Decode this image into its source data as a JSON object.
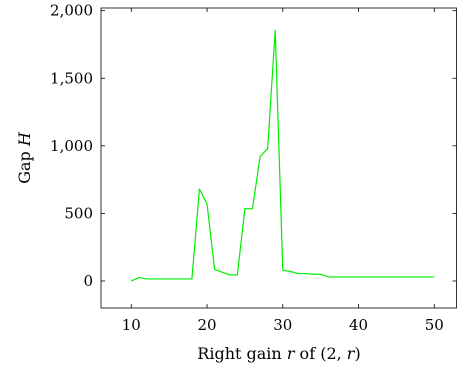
{
  "chart_data": {
    "type": "line",
    "xlabel_parts": [
      "Right gain ",
      "r",
      " of ",
      "(2, ",
      "r",
      ")"
    ],
    "ylabel_parts": [
      "Gap ",
      "H"
    ],
    "xlim": [
      6,
      53
    ],
    "ylim": [
      -200,
      2020
    ],
    "x_ticks": [
      10,
      20,
      30,
      40,
      50
    ],
    "x_tick_labels": [
      "10",
      "20",
      "30",
      "40",
      "50"
    ],
    "y_ticks": [
      0,
      500,
      1000,
      1500,
      2000
    ],
    "y_tick_labels": [
      "0",
      "500",
      "1,000",
      "1,500",
      "2,000"
    ],
    "grid": false,
    "series": [
      {
        "color": "#00ee00",
        "x": [
          10,
          11,
          12,
          13,
          14,
          15,
          16,
          17,
          18,
          19,
          20,
          21,
          22,
          23,
          24,
          25,
          26,
          27,
          28,
          29,
          30,
          31,
          32,
          33,
          34,
          35,
          36,
          37,
          38,
          39,
          40,
          41,
          42,
          43,
          44,
          45,
          46,
          47,
          48,
          49,
          50
        ],
        "y": [
          0,
          25,
          15,
          15,
          15,
          15,
          15,
          15,
          15,
          680,
          570,
          85,
          65,
          45,
          45,
          535,
          535,
          920,
          980,
          1855,
          80,
          70,
          55,
          55,
          50,
          50,
          30,
          30,
          30,
          30,
          30,
          30,
          30,
          30,
          30,
          30,
          30,
          30,
          30,
          30,
          30
        ]
      }
    ]
  }
}
